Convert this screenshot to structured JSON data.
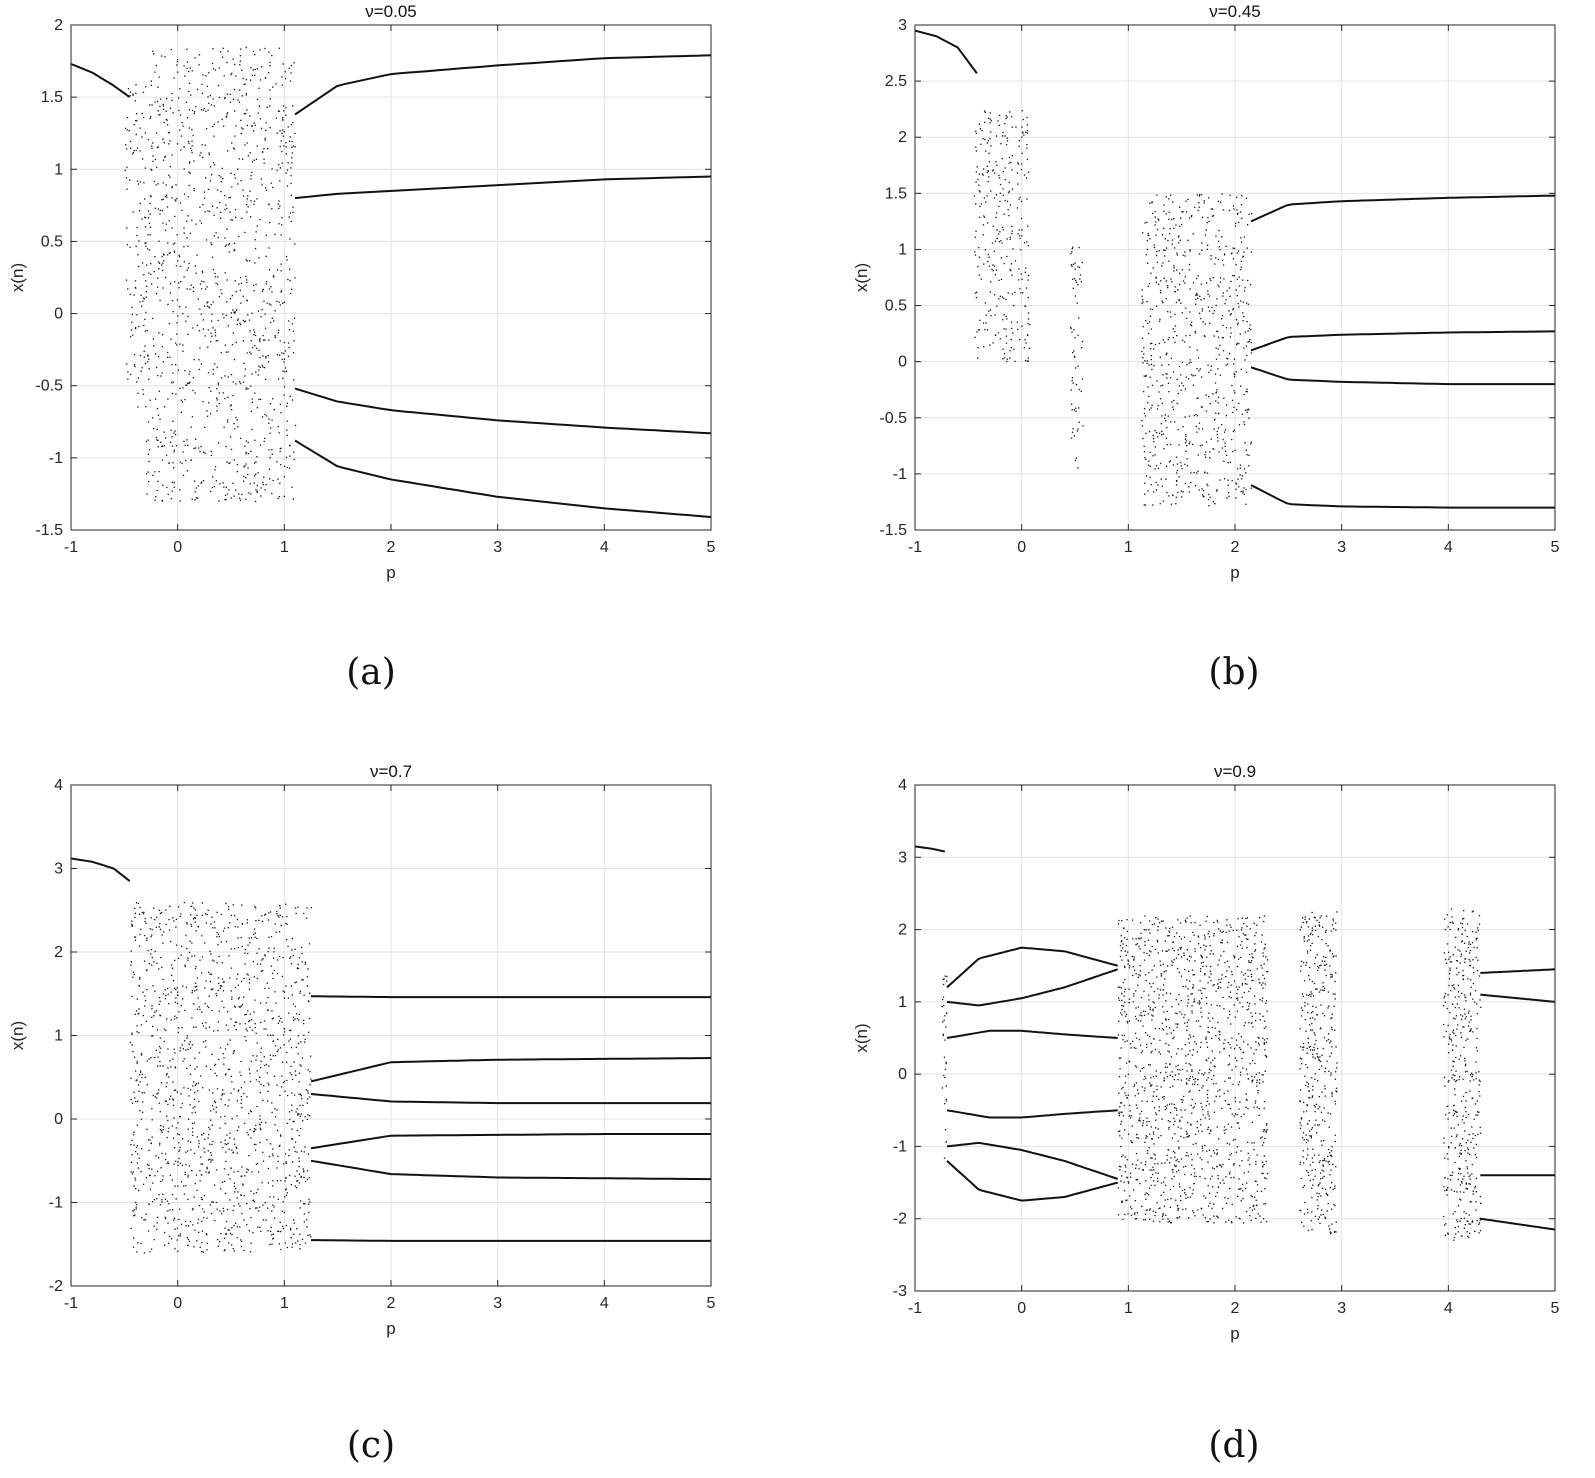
{
  "figure": {
    "panels": [
      {
        "id": "a",
        "title": "ν=0.05",
        "caption": "(a)"
      },
      {
        "id": "b",
        "title": "ν=0.45",
        "caption": "(b)"
      },
      {
        "id": "c",
        "title": "ν=0.7",
        "caption": "(c)"
      },
      {
        "id": "d",
        "title": "ν=0.9",
        "caption": "(d)"
      }
    ]
  },
  "chart_data": [
    {
      "type": "scatter",
      "title": "ν=0.05",
      "xlabel": "p",
      "ylabel": "x(n)",
      "xlim": [
        -1,
        5
      ],
      "ylim": [
        -1.5,
        2
      ],
      "xticks": [
        -1,
        0,
        1,
        2,
        3,
        4,
        5
      ],
      "yticks": [
        -1.5,
        -1,
        -0.5,
        0,
        0.5,
        1,
        1.5,
        2
      ],
      "grid": true,
      "branches": [
        {
          "x": [
            -1,
            -0.8,
            -0.6,
            -0.45
          ],
          "y": [
            1.73,
            1.67,
            1.58,
            1.5
          ]
        },
        {
          "x": [
            1.1,
            1.5,
            2,
            3,
            4,
            5
          ],
          "y": [
            1.38,
            1.58,
            1.66,
            1.72,
            1.77,
            1.79
          ]
        },
        {
          "x": [
            1.1,
            1.5,
            2,
            3,
            4,
            5
          ],
          "y": [
            0.8,
            0.83,
            0.85,
            0.89,
            0.93,
            0.95
          ]
        },
        {
          "x": [
            1.1,
            1.5,
            2,
            3,
            4,
            5
          ],
          "y": [
            -0.52,
            -0.61,
            -0.67,
            -0.74,
            -0.79,
            -0.83
          ]
        },
        {
          "x": [
            1.1,
            1.5,
            2,
            3,
            4,
            5
          ],
          "y": [
            -0.88,
            -1.06,
            -1.15,
            -1.27,
            -1.35,
            -1.41
          ]
        }
      ],
      "chaotic_bands": [
        {
          "x": [
            -0.3,
            1.1
          ],
          "y": [
            -1.3,
            1.85
          ]
        },
        {
          "x": [
            -0.5,
            -0.3
          ],
          "y": [
            -0.65,
            1.6
          ]
        }
      ]
    },
    {
      "type": "scatter",
      "title": "ν=0.45",
      "xlabel": "p",
      "ylabel": "x(n)",
      "xlim": [
        -1,
        5
      ],
      "ylim": [
        -1.5,
        3
      ],
      "xticks": [
        -1,
        0,
        1,
        2,
        3,
        4,
        5
      ],
      "yticks": [
        -1.5,
        -1,
        -0.5,
        0,
        0.5,
        1,
        1.5,
        2,
        2.5,
        3
      ],
      "grid": true,
      "branches": [
        {
          "x": [
            -1,
            -0.8,
            -0.6,
            -0.42
          ],
          "y": [
            2.95,
            2.9,
            2.8,
            2.57
          ]
        },
        {
          "x": [
            2.15,
            2.5,
            3,
            4,
            5
          ],
          "y": [
            1.25,
            1.4,
            1.43,
            1.46,
            1.48
          ]
        },
        {
          "x": [
            2.15,
            2.5,
            3,
            4,
            5
          ],
          "y": [
            0.1,
            0.22,
            0.24,
            0.26,
            0.27
          ]
        },
        {
          "x": [
            2.15,
            2.5,
            3,
            4,
            5
          ],
          "y": [
            -0.05,
            -0.16,
            -0.18,
            -0.2,
            -0.2
          ]
        },
        {
          "x": [
            2.15,
            2.5,
            3,
            4,
            5
          ],
          "y": [
            -1.1,
            -1.27,
            -1.29,
            -1.3,
            -1.3
          ]
        }
      ],
      "chaotic_bands": [
        {
          "x": [
            -0.45,
            0.07
          ],
          "y": [
            0.0,
            2.25
          ]
        },
        {
          "x": [
            0.45,
            0.57
          ],
          "y": [
            -0.95,
            1.1
          ]
        },
        {
          "x": [
            1.12,
            2.15
          ],
          "y": [
            -1.28,
            1.5
          ]
        }
      ]
    },
    {
      "type": "scatter",
      "title": "ν=0.7",
      "xlabel": "p",
      "ylabel": "x(n)",
      "xlim": [
        -1,
        5
      ],
      "ylim": [
        -2,
        4
      ],
      "xticks": [
        -1,
        0,
        1,
        2,
        3,
        4,
        5
      ],
      "yticks": [
        -2,
        -1,
        0,
        1,
        2,
        3,
        4
      ],
      "grid": true,
      "branches": [
        {
          "x": [
            -1,
            -0.8,
            -0.6,
            -0.45
          ],
          "y": [
            3.12,
            3.08,
            3.0,
            2.85
          ]
        },
        {
          "x": [
            1.25,
            2,
            3,
            4,
            5
          ],
          "y": [
            1.47,
            1.46,
            1.46,
            1.46,
            1.46
          ]
        },
        {
          "x": [
            1.25,
            2,
            3,
            4,
            5
          ],
          "y": [
            0.45,
            0.68,
            0.71,
            0.72,
            0.73
          ]
        },
        {
          "x": [
            1.25,
            2,
            3,
            4,
            5
          ],
          "y": [
            0.3,
            0.21,
            0.19,
            0.19,
            0.19
          ]
        },
        {
          "x": [
            1.25,
            2,
            3,
            4,
            5
          ],
          "y": [
            -0.35,
            -0.2,
            -0.19,
            -0.18,
            -0.18
          ]
        },
        {
          "x": [
            1.25,
            2,
            3,
            4,
            5
          ],
          "y": [
            -0.5,
            -0.66,
            -0.7,
            -0.71,
            -0.72
          ]
        },
        {
          "x": [
            1.25,
            2,
            3,
            4,
            5
          ],
          "y": [
            -1.45,
            -1.46,
            -1.46,
            -1.46,
            -1.46
          ]
        }
      ],
      "chaotic_bands": [
        {
          "x": [
            -0.45,
            1.25
          ],
          "y": [
            -1.6,
            2.6
          ]
        }
      ]
    },
    {
      "type": "scatter",
      "title": "ν=0.9",
      "xlabel": "p",
      "ylabel": "x(n)",
      "xlim": [
        -1,
        5
      ],
      "ylim": [
        -3,
        4
      ],
      "xticks": [
        -1,
        0,
        1,
        2,
        3,
        4,
        5
      ],
      "yticks": [
        -3,
        -2,
        -1,
        0,
        1,
        2,
        3,
        4
      ],
      "grid": true,
      "branches": [
        {
          "x": [
            -1,
            -0.85,
            -0.72
          ],
          "y": [
            3.15,
            3.12,
            3.08
          ]
        },
        {
          "x": [
            -0.7,
            -0.4,
            0,
            0.4,
            0.9
          ],
          "y": [
            1.2,
            1.6,
            1.75,
            1.7,
            1.5
          ]
        },
        {
          "x": [
            -0.7,
            -0.4,
            0,
            0.4,
            0.9
          ],
          "y": [
            1.0,
            0.95,
            1.05,
            1.2,
            1.45
          ]
        },
        {
          "x": [
            -0.7,
            -0.3,
            0,
            0.4,
            0.9
          ],
          "y": [
            0.5,
            0.6,
            0.6,
            0.55,
            0.5
          ]
        },
        {
          "x": [
            -0.7,
            -0.3,
            0,
            0.4,
            0.9
          ],
          "y": [
            -0.5,
            -0.6,
            -0.6,
            -0.55,
            -0.5
          ]
        },
        {
          "x": [
            -0.7,
            -0.4,
            0,
            0.4,
            0.9
          ],
          "y": [
            -1.0,
            -0.95,
            -1.05,
            -1.2,
            -1.45
          ]
        },
        {
          "x": [
            -0.7,
            -0.4,
            0,
            0.4,
            0.9
          ],
          "y": [
            -1.2,
            -1.6,
            -1.75,
            -1.7,
            -1.5
          ]
        },
        {
          "x": [
            4.3,
            5
          ],
          "y": [
            1.4,
            1.45
          ]
        },
        {
          "x": [
            4.3,
            5
          ],
          "y": [
            1.1,
            1.0
          ]
        },
        {
          "x": [
            4.3,
            5
          ],
          "y": [
            -1.4,
            -1.4
          ]
        },
        {
          "x": [
            4.3,
            5
          ],
          "y": [
            -2.0,
            -2.15
          ]
        }
      ],
      "chaotic_bands": [
        {
          "x": [
            -0.75,
            -0.7
          ],
          "y": [
            -1.2,
            1.4
          ]
        },
        {
          "x": [
            0.9,
            2.3
          ],
          "y": [
            -2.05,
            2.2
          ]
        },
        {
          "x": [
            2.6,
            2.95
          ],
          "y": [
            -2.2,
            2.3
          ]
        },
        {
          "x": [
            3.95,
            4.3
          ],
          "y": [
            -2.3,
            2.3
          ]
        }
      ]
    }
  ]
}
